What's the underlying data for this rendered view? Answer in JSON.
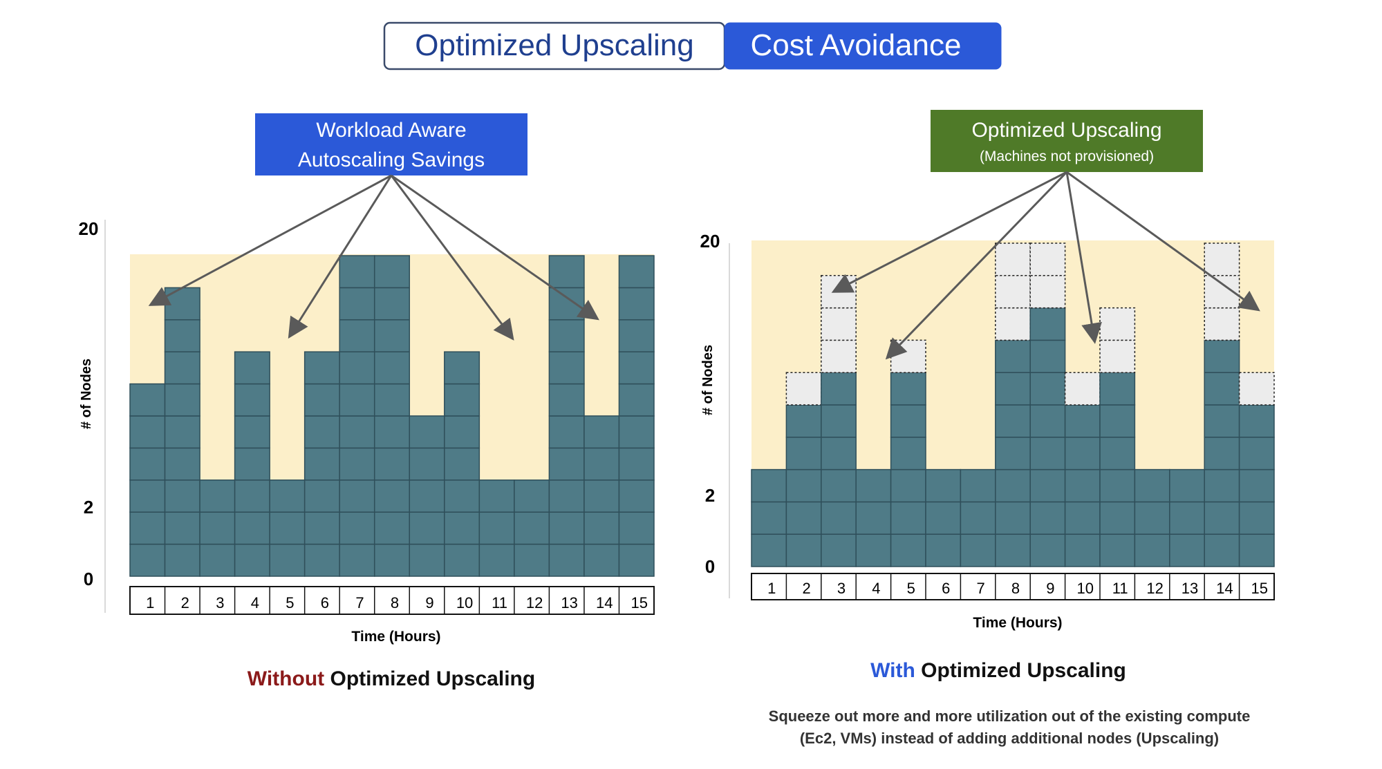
{
  "header": {
    "tab_left": "Optimized Upscaling",
    "tab_right": "Cost Avoidance",
    "tab_left_color": "#1f3f8f",
    "tab_right_bg": "#2b59d8"
  },
  "left_panel": {
    "callout_line1": "Workload Aware",
    "callout_line2": "Autoscaling Savings",
    "callout_color": "#2b59d8",
    "caption_prefix": "Without",
    "caption_rest": "Optimized Upscaling",
    "caption_prefix_color": "#8b1a1a"
  },
  "right_panel": {
    "callout_line1": "Optimized Upscaling",
    "callout_line2": "(Machines not provisioned)",
    "callout_color": "#4f7a28",
    "caption_prefix": "With",
    "caption_rest": "Optimized Upscaling",
    "caption_prefix_color": "#2b59d8",
    "note_line1": "Squeeze out more and more utilization out of the existing compute",
    "note_line2": "(Ec2, VMs) instead of adding additional nodes (Upscaling)"
  },
  "colors": {
    "bar": "#4f7b87",
    "bar_border": "#2f4f5a",
    "background_band": "#fcefc9",
    "ghost_fill": "#ececec",
    "arrow": "#5a5a5a"
  },
  "chart_data": [
    {
      "type": "bar",
      "categories": [
        "1",
        "2",
        "3",
        "4",
        "5",
        "6",
        "7",
        "8",
        "9",
        "10",
        "11",
        "12",
        "13",
        "14",
        "15"
      ],
      "values": [
        6,
        9,
        3,
        7,
        3,
        7,
        10,
        10,
        5,
        7,
        3,
        3,
        10,
        5,
        10
      ],
      "ytick_labels": [
        "0",
        "2",
        "20"
      ],
      "ylabel": "# of Nodes",
      "xlabel": "Time (Hours)"
    },
    {
      "type": "bar",
      "categories": [
        "1",
        "2",
        "3",
        "4",
        "5",
        "6",
        "7",
        "8",
        "9",
        "10",
        "11",
        "12",
        "13",
        "14",
        "15"
      ],
      "series": [
        {
          "values": [
            3,
            5,
            6,
            3,
            6,
            3,
            3,
            7,
            8,
            5,
            6,
            3,
            3,
            7,
            5
          ]
        },
        {
          "values": [
            0,
            1,
            3,
            0,
            1,
            0,
            0,
            3,
            2,
            1,
            2,
            0,
            0,
            3,
            1
          ]
        }
      ],
      "ytick_labels": [
        "0",
        "2",
        "20"
      ],
      "ylabel": "# of Nodes",
      "xlabel": "Time (Hours)"
    }
  ]
}
